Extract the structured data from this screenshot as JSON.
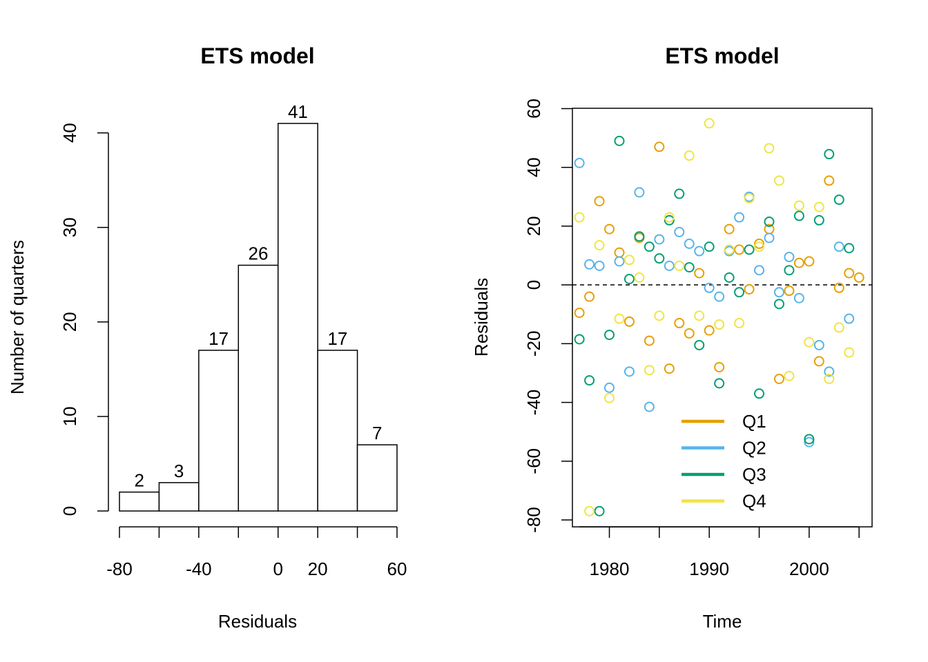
{
  "chart_data": [
    {
      "type": "bar",
      "title": "ETS model",
      "xlabel": "Residuals",
      "ylabel": "Number of quarters",
      "bin_edges": [
        -80,
        -60,
        -40,
        -20,
        0,
        20,
        40,
        60
      ],
      "counts": [
        2,
        3,
        17,
        26,
        41,
        17,
        7
      ],
      "count_labels": [
        "2",
        "3",
        "17",
        "26",
        "41",
        "17",
        "7"
      ],
      "xticks": [
        -80,
        -40,
        0,
        20,
        60
      ],
      "xtick_labels": [
        "-80",
        "-40",
        "0",
        "20",
        "60"
      ],
      "yticks": [
        0,
        10,
        20,
        30,
        40
      ],
      "ytick_labels": [
        "0",
        "10",
        "20",
        "30",
        "40"
      ],
      "ylim": [
        0,
        41
      ],
      "xlim": [
        -80,
        60
      ]
    },
    {
      "type": "scatter",
      "title": "ETS model",
      "xlabel": "Time",
      "ylabel": "Residuals",
      "xlim": [
        1976.3,
        2006.3
      ],
      "ylim": [
        -80,
        60
      ],
      "xticks": [
        1980,
        1990,
        2000
      ],
      "xtick_labels": [
        "1980",
        "1990",
        "2000"
      ],
      "yticks": [
        -80,
        -60,
        -40,
        -20,
        0,
        20,
        40,
        60
      ],
      "ytick_labels": [
        "-80",
        "-60",
        "-40",
        "-20",
        "0",
        "20",
        "40",
        "60"
      ],
      "reference_line": 0,
      "legend_position": "bottom-center",
      "series": [
        {
          "name": "Q1",
          "color": "#E69F00",
          "x": [
            1977.0,
            1978.0,
            1979.0,
            1980.0,
            1981.0,
            1982.0,
            1983.0,
            1984.0,
            1985.0,
            1986.0,
            1987.0,
            1988.0,
            1989.0,
            1990.0,
            1991.0,
            1992.0,
            1993.0,
            1994.0,
            1995.0,
            1996.0,
            1997.0,
            1998.0,
            1999.0,
            2000.0,
            2001.0,
            2002.0,
            2003.0,
            2004.0,
            2005.0
          ],
          "y": [
            -9.5,
            -4,
            28.5,
            19,
            11,
            -12.5,
            16,
            -19,
            47,
            -28.5,
            -13,
            -16.5,
            4,
            -15.5,
            -28,
            19,
            12,
            -1.5,
            14,
            19,
            -32,
            -2,
            7.5,
            8,
            -26,
            35.5,
            -1,
            4,
            2.5
          ]
        },
        {
          "name": "Q2",
          "color": "#56B4E9",
          "x": [
            1977.0,
            1978.0,
            1979.0,
            1980.0,
            1981.0,
            1982.0,
            1983.0,
            1984.0,
            1985.0,
            1986.0,
            1987.0,
            1988.0,
            1989.0,
            1990.0,
            1991.0,
            1992.0,
            1993.0,
            1994.0,
            1995.0,
            1996.0,
            1997.0,
            1998.0,
            1999.0,
            2000.0,
            2001.0,
            2002.0,
            2003.0,
            2004.0
          ],
          "y": [
            41.5,
            7,
            6.5,
            -35,
            8,
            -29.5,
            31.5,
            -41.5,
            15.5,
            6.5,
            18,
            14,
            11.5,
            -1,
            -4,
            11.5,
            23,
            30,
            5,
            16,
            -2.5,
            9.5,
            -4.5,
            -53.5,
            -20.5,
            -29.5,
            13,
            -11.5
          ]
        },
        {
          "name": "Q3",
          "color": "#009E73",
          "x": [
            1977.0,
            1978.0,
            1979.0,
            1980.0,
            1981.0,
            1982.0,
            1983.0,
            1984.0,
            1985.0,
            1986.0,
            1987.0,
            1988.0,
            1989.0,
            1990.0,
            1991.0,
            1992.0,
            1993.0,
            1994.0,
            1995.0,
            1996.0,
            1997.0,
            1998.0,
            1999.0,
            2000.0,
            2001.0,
            2002.0,
            2003.0,
            2004.0
          ],
          "y": [
            -18.5,
            -32.5,
            -77,
            -17,
            49,
            2,
            16.5,
            13,
            9,
            22,
            31,
            6,
            -20.5,
            13,
            -33.5,
            2.5,
            -2.5,
            12,
            -37,
            21.5,
            -6.5,
            5,
            23.5,
            -52.5,
            22,
            44.5,
            29,
            12.5
          ]
        },
        {
          "name": "Q4",
          "color": "#F0E442",
          "x": [
            1977.0,
            1978.0,
            1979.0,
            1980.0,
            1981.0,
            1982.0,
            1983.0,
            1984.0,
            1985.0,
            1986.0,
            1987.0,
            1988.0,
            1989.0,
            1990.0,
            1991.0,
            1992.0,
            1993.0,
            1994.0,
            1995.0,
            1996.0,
            1997.0,
            1998.0,
            1999.0,
            2000.0,
            2001.0,
            2002.0,
            2003.0,
            2004.0
          ],
          "y": [
            23,
            -77,
            13.5,
            -38.5,
            -11.5,
            8.5,
            2.5,
            -29,
            -10.5,
            23,
            6.5,
            44,
            -10.5,
            55,
            -13.5,
            12,
            -13,
            29.5,
            13,
            46.5,
            35.5,
            -31,
            27,
            -19.5,
            26.5,
            -32,
            -14.5,
            -23
          ]
        }
      ]
    }
  ]
}
